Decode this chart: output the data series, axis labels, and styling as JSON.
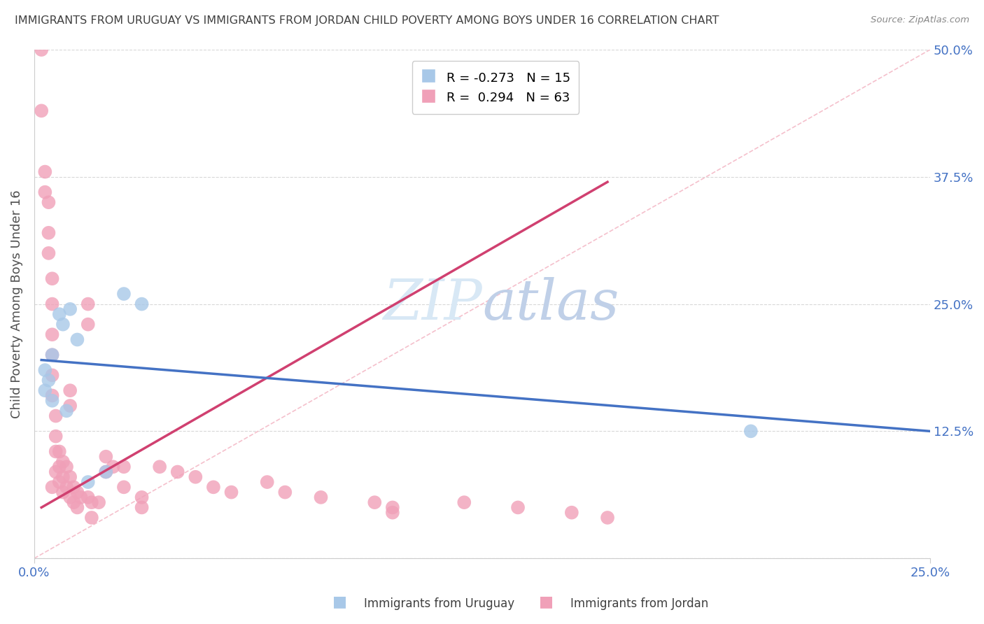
{
  "title": "IMMIGRANTS FROM URUGUAY VS IMMIGRANTS FROM JORDAN CHILD POVERTY AMONG BOYS UNDER 16 CORRELATION CHART",
  "source": "Source: ZipAtlas.com",
  "ylabel": "Child Poverty Among Boys Under 16",
  "legend_uruguay": "Immigrants from Uruguay",
  "legend_jordan": "Immigrants from Jordan",
  "R_uruguay": -0.273,
  "N_uruguay": 15,
  "R_jordan": 0.294,
  "N_jordan": 63,
  "uruguay_color": "#a8c8e8",
  "jordan_color": "#f0a0b8",
  "uruguay_line_color": "#4472c4",
  "jordan_line_color": "#d04070",
  "diagonal_color": "#f5c0cc",
  "watermark_color": "#d8e8f5",
  "background_color": "#ffffff",
  "grid_color": "#d8d8d8",
  "title_color": "#404040",
  "axis_label_color": "#4472c4",
  "xmin": 0.0,
  "xmax": 0.25,
  "ymin": 0.0,
  "ymax": 0.5,
  "yticks": [
    0.0,
    0.125,
    0.25,
    0.375,
    0.5
  ],
  "ytick_labels": [
    "",
    "12.5%",
    "25.0%",
    "37.5%",
    "50.0%"
  ],
  "uruguay_scatter_x": [
    0.003,
    0.003,
    0.004,
    0.005,
    0.005,
    0.007,
    0.008,
    0.009,
    0.01,
    0.012,
    0.015,
    0.02,
    0.025,
    0.03,
    0.2
  ],
  "uruguay_scatter_y": [
    0.185,
    0.165,
    0.175,
    0.155,
    0.2,
    0.24,
    0.23,
    0.145,
    0.245,
    0.215,
    0.075,
    0.085,
    0.26,
    0.25,
    0.125
  ],
  "jordan_scatter_x": [
    0.002,
    0.002,
    0.003,
    0.003,
    0.004,
    0.004,
    0.004,
    0.005,
    0.005,
    0.005,
    0.005,
    0.005,
    0.005,
    0.005,
    0.006,
    0.006,
    0.006,
    0.006,
    0.007,
    0.007,
    0.007,
    0.008,
    0.008,
    0.008,
    0.009,
    0.009,
    0.01,
    0.01,
    0.01,
    0.01,
    0.011,
    0.011,
    0.012,
    0.012,
    0.013,
    0.015,
    0.015,
    0.015,
    0.016,
    0.016,
    0.018,
    0.02,
    0.02,
    0.022,
    0.025,
    0.025,
    0.03,
    0.03,
    0.035,
    0.04,
    0.045,
    0.05,
    0.055,
    0.065,
    0.07,
    0.08,
    0.095,
    0.1,
    0.1,
    0.12,
    0.135,
    0.15,
    0.16
  ],
  "jordan_scatter_y": [
    0.5,
    0.44,
    0.38,
    0.36,
    0.35,
    0.32,
    0.3,
    0.275,
    0.25,
    0.22,
    0.2,
    0.18,
    0.16,
    0.07,
    0.14,
    0.12,
    0.105,
    0.085,
    0.105,
    0.09,
    0.075,
    0.095,
    0.08,
    0.065,
    0.09,
    0.07,
    0.165,
    0.15,
    0.08,
    0.06,
    0.07,
    0.055,
    0.065,
    0.05,
    0.06,
    0.25,
    0.23,
    0.06,
    0.055,
    0.04,
    0.055,
    0.1,
    0.085,
    0.09,
    0.09,
    0.07,
    0.06,
    0.05,
    0.09,
    0.085,
    0.08,
    0.07,
    0.065,
    0.075,
    0.065,
    0.06,
    0.055,
    0.05,
    0.045,
    0.055,
    0.05,
    0.045,
    0.04
  ],
  "jordan_line_x": [
    0.002,
    0.16
  ],
  "jordan_line_y": [
    0.05,
    0.37
  ],
  "uruguay_line_x": [
    0.002,
    0.25
  ],
  "uruguay_line_y": [
    0.195,
    0.125
  ]
}
